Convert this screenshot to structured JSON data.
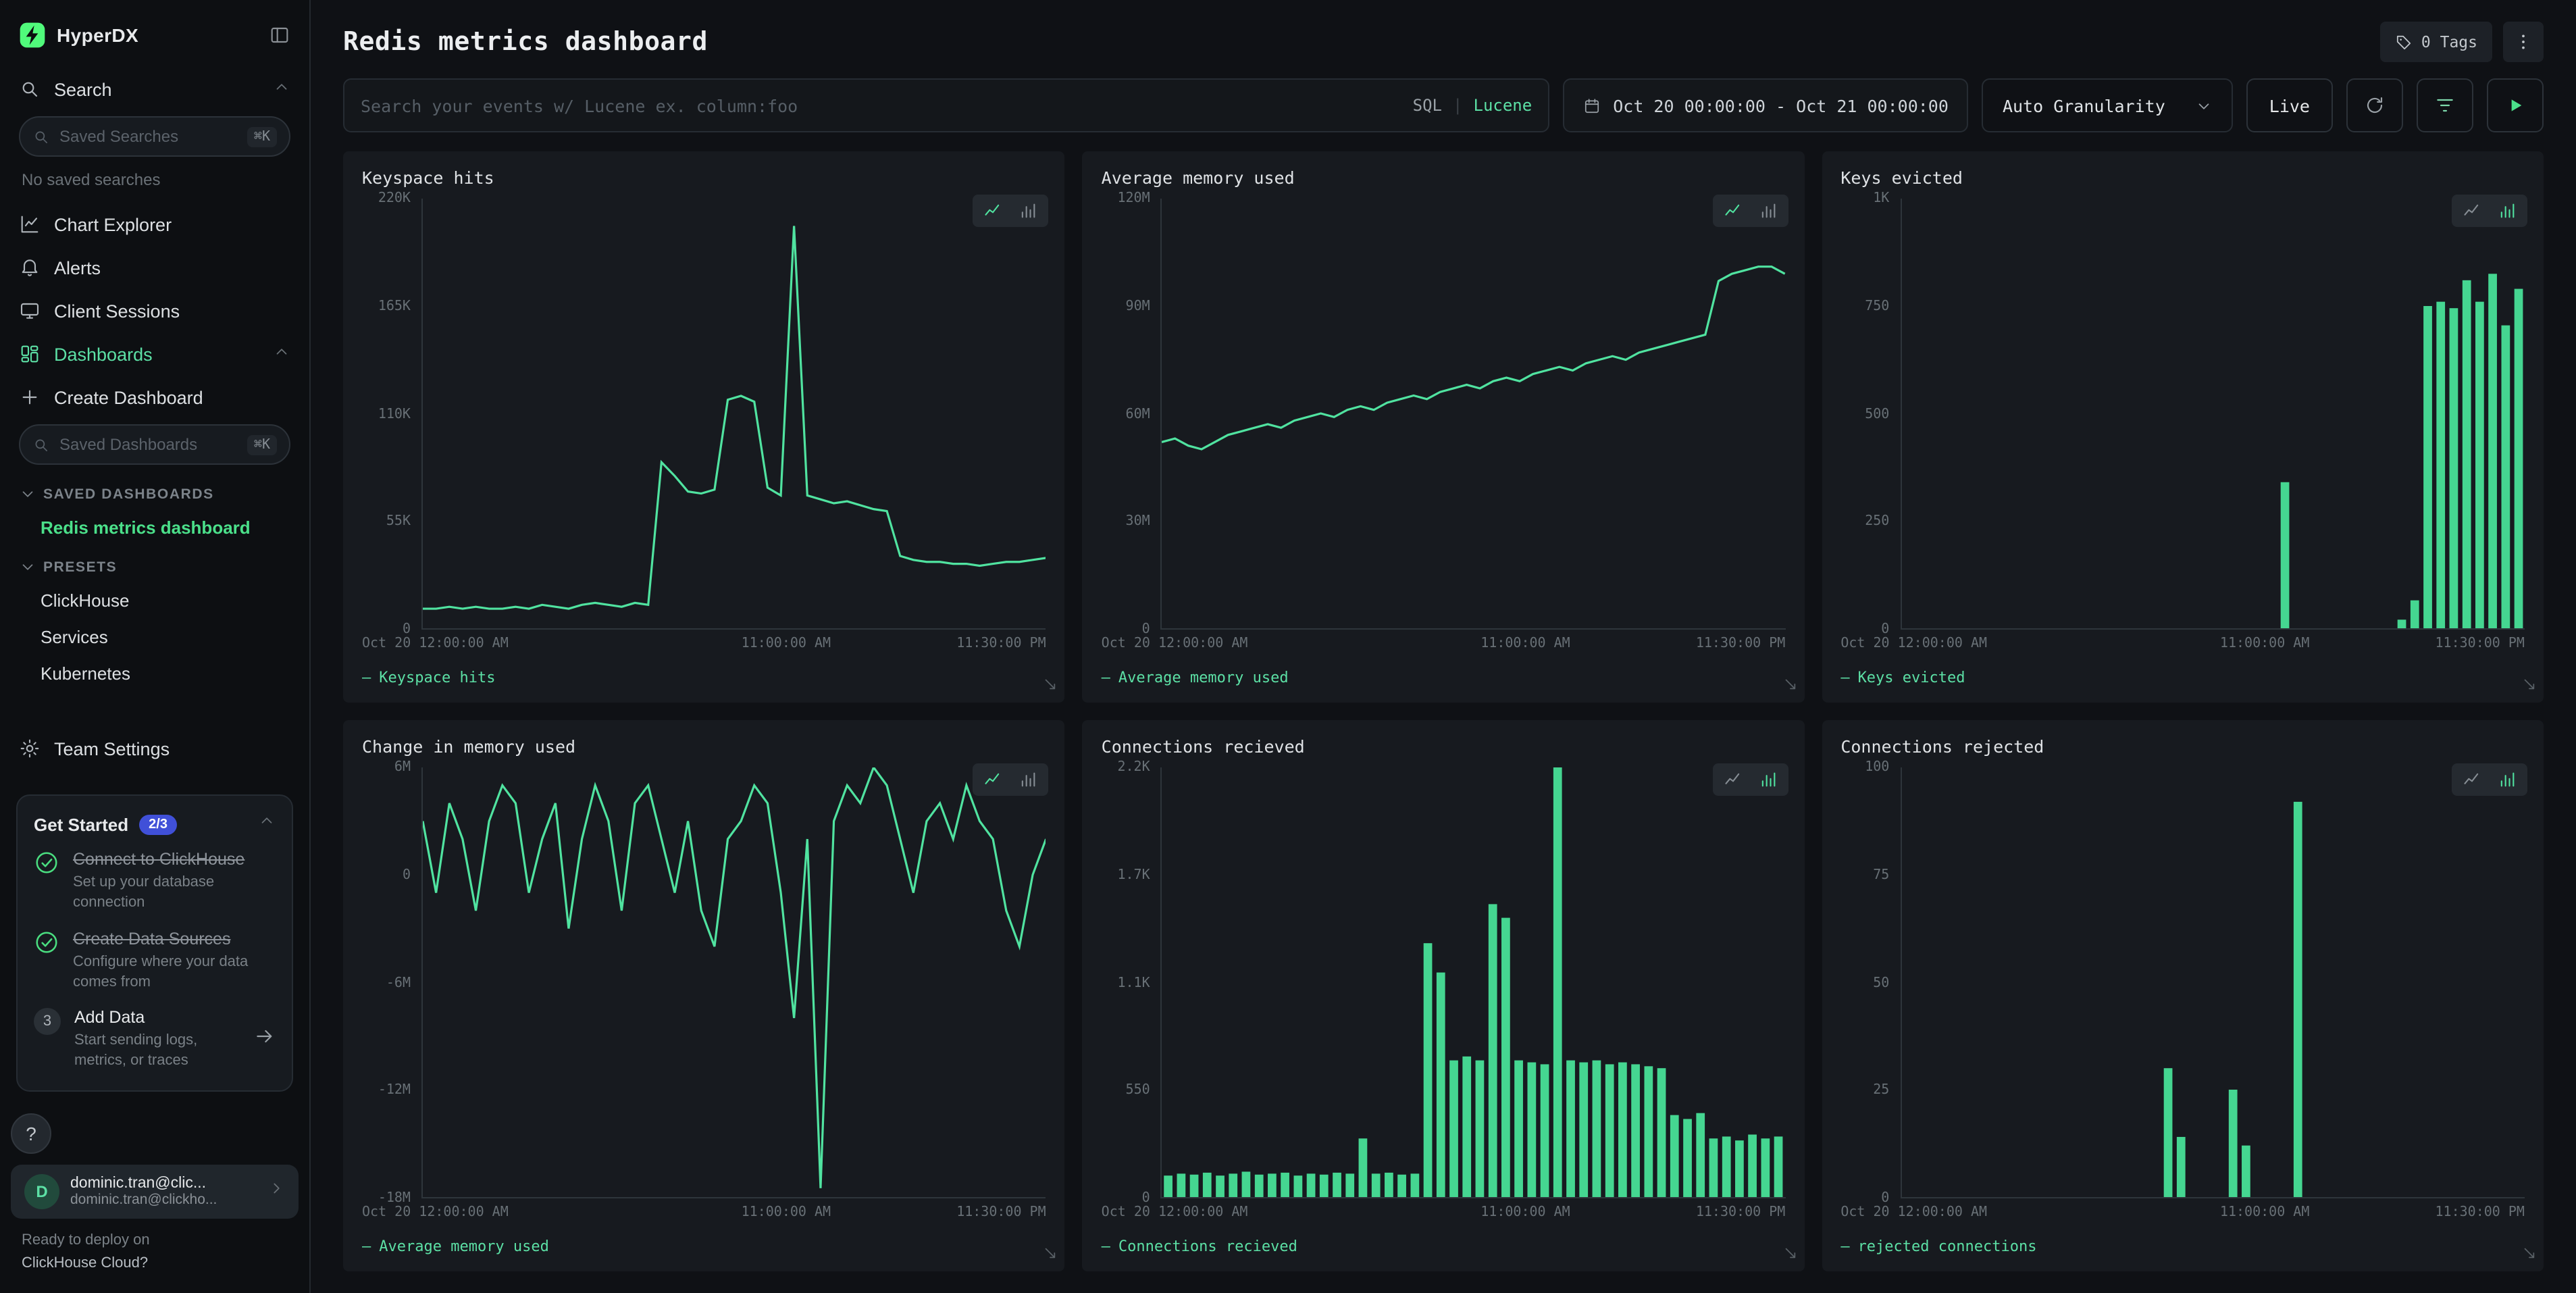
{
  "app": {
    "name": "HyperDX"
  },
  "colors": {
    "accent": "#50e3a0",
    "brand": "#50fa7b",
    "bar": "#45d691",
    "legend": "#5ce0a5",
    "badge": "#4050d8"
  },
  "legend_prefix": "—",
  "sidebar": {
    "logo_text": "HyperDX",
    "search_label": "Search",
    "saved_searches_placeholder": "Saved Searches",
    "shortcut": "⌘K",
    "no_saved_searches": "No saved searches",
    "nav": {
      "chart_explorer": "Chart Explorer",
      "alerts": "Alerts",
      "client_sessions": "Client Sessions",
      "dashboards": "Dashboards",
      "create_dashboard": "Create Dashboard",
      "team_settings": "Team Settings"
    },
    "saved_dashboards_placeholder": "Saved Dashboards",
    "sections": {
      "saved": "SAVED DASHBOARDS",
      "presets": "PRESETS"
    },
    "active_dashboard": "Redis metrics dashboard",
    "presets": [
      "ClickHouse",
      "Services",
      "Kubernetes"
    ],
    "get_started": {
      "title": "Get Started",
      "badge": "2/3",
      "items": [
        {
          "title": "Connect to ClickHouse",
          "desc": "Set up your database connection"
        },
        {
          "title": "Create Data Sources",
          "desc": "Configure where your data comes from"
        },
        {
          "title": "Add Data",
          "desc": "Start sending logs, metrics, or traces",
          "step": "3"
        }
      ]
    },
    "help": "?",
    "user": {
      "initial": "D",
      "name": "dominic.tran@clic...",
      "email": "dominic.tran@clickho..."
    },
    "promo": {
      "line1": "Ready to deploy on",
      "line2": "ClickHouse Cloud?"
    }
  },
  "header": {
    "title": "Redis metrics dashboard",
    "tags": "0 Tags"
  },
  "toolbar": {
    "search_placeholder": "Search your events w/ Lucene ex. column:foo",
    "sql": "SQL",
    "separator": "|",
    "lucene": "Lucene",
    "date_range": "Oct 20 00:00:00 - Oct 21 00:00:00",
    "granularity": "Auto Granularity",
    "live": "Live"
  },
  "chart_data": [
    {
      "type": "line",
      "title": "Keyspace hits",
      "legend": "Keyspace hits",
      "unit": "K",
      "ylim": [
        0,
        220
      ],
      "y_ticks": [
        "220K",
        "165K",
        "110K",
        "55K",
        "0"
      ],
      "x_ticks": [
        "Oct 20 12:00:00 AM",
        "11:00:00 AM",
        "11:30:00 PM"
      ],
      "x_tick_pos": [
        0,
        62,
        100
      ],
      "values": [
        10,
        10,
        11,
        10,
        11,
        10,
        10,
        11,
        10,
        12,
        11,
        10,
        12,
        13,
        12,
        11,
        13,
        12,
        85,
        78,
        70,
        69,
        71,
        117,
        119,
        116,
        72,
        68,
        206,
        68,
        66,
        64,
        65,
        63,
        61,
        60,
        37,
        35,
        34,
        34,
        33,
        33,
        32,
        33,
        34,
        34,
        35,
        36
      ]
    },
    {
      "type": "line",
      "title": "Average memory used",
      "legend": "Average memory used",
      "unit": "M",
      "ylim": [
        0,
        120
      ],
      "y_ticks": [
        "120M",
        "90M",
        "60M",
        "30M",
        "0"
      ],
      "x_ticks": [
        "Oct 20 12:00:00 AM",
        "11:00:00 AM",
        "11:30:00 PM"
      ],
      "x_tick_pos": [
        0,
        62,
        100
      ],
      "values": [
        52,
        53,
        51,
        50,
        52,
        54,
        55,
        56,
        57,
        56,
        58,
        59,
        60,
        59,
        61,
        62,
        61,
        63,
        64,
        65,
        64,
        66,
        67,
        68,
        67,
        69,
        70,
        69,
        71,
        72,
        73,
        72,
        74,
        75,
        76,
        75,
        77,
        78,
        79,
        80,
        81,
        82,
        97,
        99,
        100,
        101,
        101,
        99
      ]
    },
    {
      "type": "bar",
      "title": "Keys evicted",
      "legend": "Keys evicted",
      "unit": "",
      "ylim": [
        0,
        1000
      ],
      "y_ticks": [
        "1K",
        "750",
        "500",
        "250",
        "0"
      ],
      "x_ticks": [
        "Oct 20 12:00:00 AM",
        "11:00:00 AM",
        "11:30:00 PM"
      ],
      "x_tick_pos": [
        0,
        62,
        100
      ],
      "values": [
        0,
        0,
        0,
        0,
        0,
        0,
        0,
        0,
        0,
        0,
        0,
        0,
        0,
        0,
        0,
        0,
        0,
        0,
        0,
        0,
        0,
        0,
        0,
        0,
        0,
        0,
        0,
        0,
        0,
        340,
        0,
        0,
        0,
        0,
        0,
        0,
        0,
        0,
        20,
        65,
        750,
        760,
        745,
        810,
        760,
        825,
        705,
        790
      ]
    },
    {
      "type": "line",
      "title": "Change in memory used",
      "legend": "Average memory used",
      "unit": "M",
      "ylim": [
        -18,
        6
      ],
      "y_ticks": [
        "6M",
        "0",
        "-6M",
        "-12M",
        "-18M"
      ],
      "x_ticks": [
        "Oct 20 12:00:00 AM",
        "11:00:00 AM",
        "11:30:00 PM"
      ],
      "x_tick_pos": [
        0,
        62,
        100
      ],
      "values": [
        3,
        -1,
        4,
        2,
        -2,
        3,
        5,
        4,
        -1,
        2,
        4,
        -3,
        2,
        5,
        3,
        -2,
        4,
        5,
        2,
        -1,
        3,
        -2,
        -4,
        2,
        3,
        5,
        4,
        -1,
        -8,
        2,
        -17.5,
        3,
        5,
        4,
        6,
        5,
        2,
        -1,
        3,
        4,
        2,
        5,
        3,
        2,
        -2,
        -4,
        0,
        2
      ]
    },
    {
      "type": "bar",
      "title": "Connections recieved",
      "legend": "Connections recieved",
      "unit": "",
      "ylim": [
        0,
        2200
      ],
      "y_ticks": [
        "2.2K",
        "1.7K",
        "1.1K",
        "550",
        "0"
      ],
      "x_ticks": [
        "Oct 20 12:00:00 AM",
        "11:00:00 AM",
        "11:30:00 PM"
      ],
      "x_tick_pos": [
        0,
        62,
        100
      ],
      "values": [
        110,
        120,
        115,
        125,
        110,
        120,
        130,
        115,
        120,
        125,
        110,
        120,
        115,
        125,
        120,
        300,
        120,
        125,
        115,
        120,
        1300,
        1150,
        700,
        720,
        700,
        1500,
        1430,
        700,
        690,
        680,
        2200,
        700,
        690,
        700,
        680,
        690,
        680,
        670,
        660,
        420,
        400,
        430,
        300,
        310,
        290,
        320,
        300,
        310
      ]
    },
    {
      "type": "bar",
      "title": "Connections rejected",
      "legend": "rejected connections",
      "unit": "",
      "ylim": [
        0,
        100
      ],
      "y_ticks": [
        "100",
        "75",
        "50",
        "25",
        "0"
      ],
      "x_ticks": [
        "Oct 20 12:00:00 AM",
        "11:00:00 AM",
        "11:30:00 PM"
      ],
      "x_tick_pos": [
        0,
        62,
        100
      ],
      "values": [
        0,
        0,
        0,
        0,
        0,
        0,
        0,
        0,
        0,
        0,
        0,
        0,
        0,
        0,
        0,
        0,
        0,
        0,
        0,
        0,
        30,
        14,
        0,
        0,
        0,
        25,
        12,
        0,
        0,
        0,
        92,
        0,
        0,
        0,
        0,
        0,
        0,
        0,
        0,
        0,
        0,
        0,
        0,
        0,
        0,
        0,
        0,
        0
      ]
    }
  ]
}
